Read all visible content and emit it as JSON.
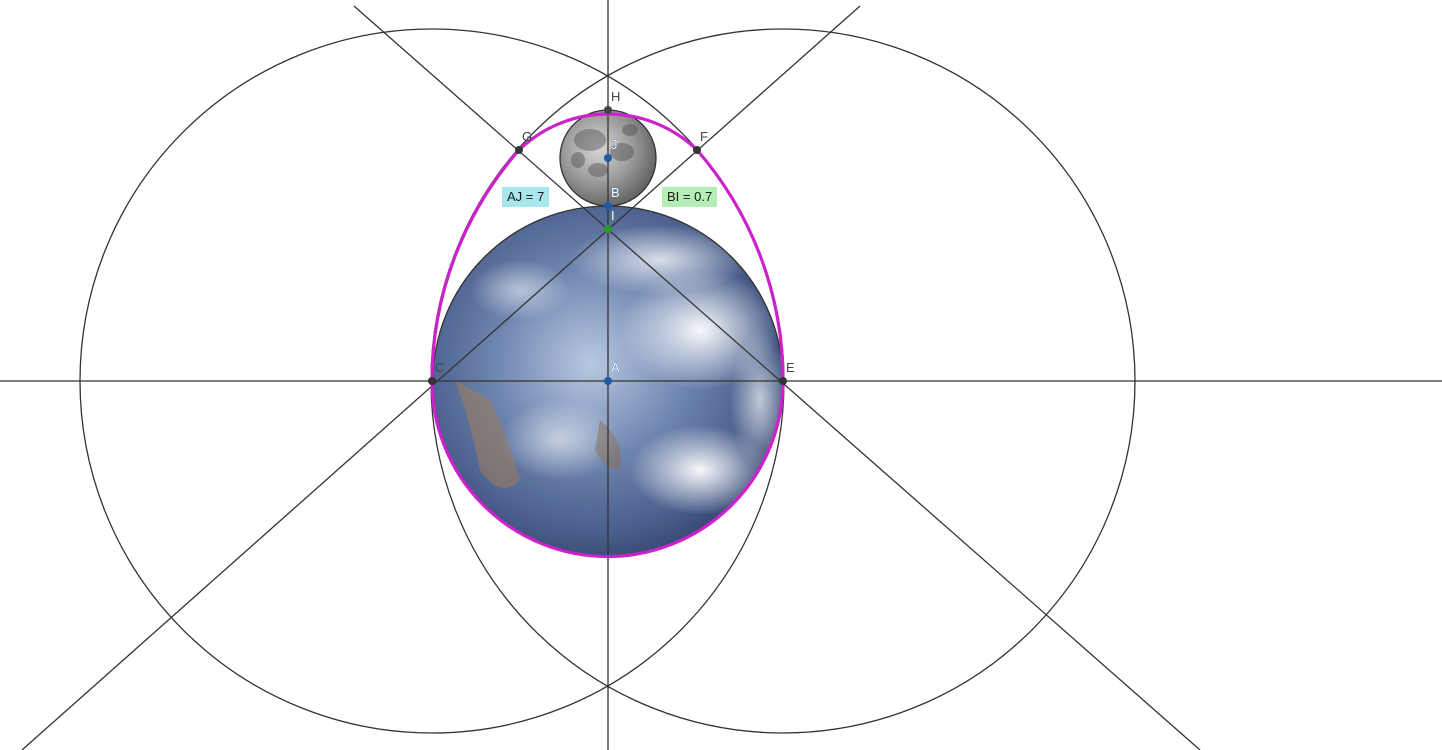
{
  "labels": {
    "aj": "AJ = 7",
    "bi": "BI = 0.7"
  },
  "points": {
    "A": "A",
    "B": "B",
    "E": "E",
    "C": "C",
    "F": "F",
    "G": "G",
    "H": "H",
    "I": "I",
    "J": "J"
  },
  "colors": {
    "construction_line": "#333333",
    "egg_curve": "#cc22cc",
    "aj_label_bg": "#a8e6ee",
    "bi_label_bg": "#b4eeb4",
    "free_point": "#1e5aa8",
    "dependent_point": "#333333",
    "point_I": "#2a9a2a"
  },
  "images": {
    "earth": "earth-photo",
    "moon": "moon-photo"
  }
}
